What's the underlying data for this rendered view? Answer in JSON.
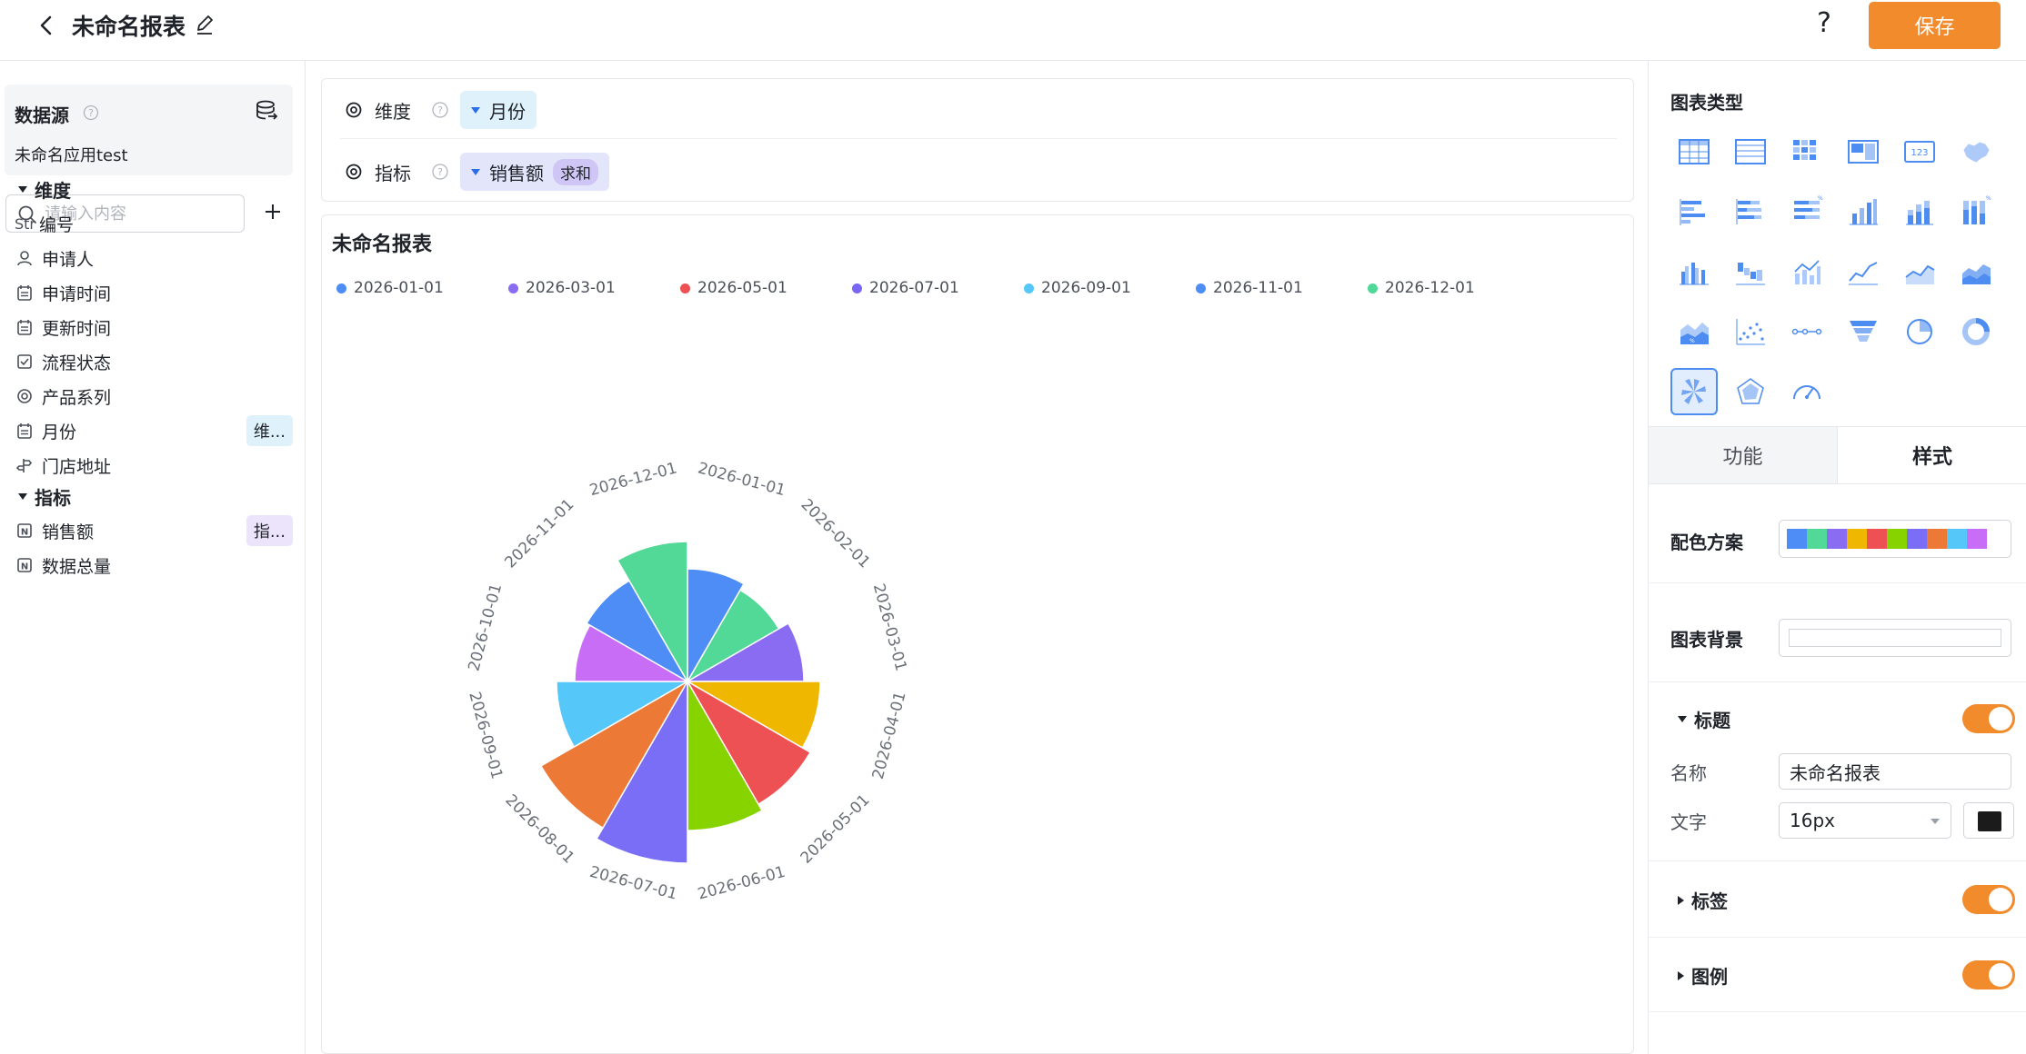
{
  "header": {
    "title": "未命名报表",
    "help": "?",
    "save_label": "保存"
  },
  "left": {
    "datasource_title": "数据源",
    "datasource_name": "未命名应用test",
    "search_placeholder": "请输入内容",
    "dim_group": "维度",
    "met_group": "指标",
    "dimensions": [
      {
        "icon": "str-icon",
        "prefix": "Str",
        "label": "编号",
        "tag": ""
      },
      {
        "icon": "user-icon",
        "prefix": "",
        "label": "申请人",
        "tag": ""
      },
      {
        "icon": "calendar-icon",
        "prefix": "",
        "label": "申请时间",
        "tag": ""
      },
      {
        "icon": "calendar-icon",
        "prefix": "",
        "label": "更新时间",
        "tag": ""
      },
      {
        "icon": "checkbox-icon",
        "prefix": "",
        "label": "流程状态",
        "tag": ""
      },
      {
        "icon": "target-icon",
        "prefix": "",
        "label": "产品系列",
        "tag": ""
      },
      {
        "icon": "calendar-icon",
        "prefix": "",
        "label": "月份",
        "tag": "维..."
      },
      {
        "icon": "signpost-icon",
        "prefix": "",
        "label": "门店地址",
        "tag": ""
      }
    ],
    "metrics": [
      {
        "icon": "number-icon",
        "label": "销售额",
        "tag": "指..."
      },
      {
        "icon": "number-icon",
        "label": "数据总量",
        "tag": ""
      }
    ]
  },
  "config": {
    "dim_label": "维度",
    "dim_value": "月份",
    "met_label": "指标",
    "met_value": "销售额",
    "met_agg": "求和"
  },
  "card": {
    "title": "未命名报表"
  },
  "chart_data": {
    "type": "rose",
    "title": "未命名报表",
    "legend_position": "top",
    "legend": [
      "2026-01-01",
      "2026-03-01",
      "2026-05-01",
      "2026-07-01",
      "2026-09-01",
      "2026-11-01",
      "2026-12-01"
    ],
    "legend_colors": [
      "#4e8cf6",
      "#8a6cf3",
      "#ee5153",
      "#7a66f5",
      "#55c8f9",
      "#4e8cf6",
      "#4fd897"
    ],
    "categories": [
      "2026-01-01",
      "2026-02-01",
      "2026-03-01",
      "2026-04-01",
      "2026-05-01",
      "2026-06-01",
      "2026-07-01",
      "2026-08-01",
      "2026-09-01",
      "2026-10-01",
      "2026-11-01",
      "2026-12-01"
    ],
    "colors": [
      "#4e8cf6",
      "#52d997",
      "#8a6cf3",
      "#efb700",
      "#ee5153",
      "#86d300",
      "#7a6ef7",
      "#ed7936",
      "#55c8f9",
      "#c86df6",
      "#4e8cf6",
      "#52d997"
    ],
    "values": [
      62,
      58,
      64,
      73,
      78,
      82,
      100,
      93,
      72,
      62,
      64,
      77
    ]
  },
  "right": {
    "chart_types_title": "图表类型",
    "chart_types": [
      "table-icon",
      "detail-table-icon",
      "pivot-table-icon",
      "card-icon",
      "number-card-icon",
      "map-icon",
      "bar-horizontal-icon",
      "stacked-bar-horizontal-icon",
      "percent-bar-horizontal-icon",
      "column-icon",
      "stacked-column-icon",
      "percent-column-icon",
      "grouped-column-icon",
      "waterfall-icon",
      "column-line-icon",
      "line-icon",
      "area-line-icon",
      "area-icon",
      "percent-area-icon",
      "scatter-icon",
      "dot-line-icon",
      "funnel-icon",
      "pie-icon",
      "donut-icon",
      "rose-icon",
      "radar-icon",
      "gauge-icon"
    ],
    "active_chart": "rose-icon",
    "tab_function": "功能",
    "tab_style": "样式",
    "palette_label": "配色方案",
    "palette_colors": [
      "#4e8cf6",
      "#52d997",
      "#8a6cf3",
      "#efb700",
      "#ee5153",
      "#86d300",
      "#7a6ef7",
      "#ed7936",
      "#55c8f9",
      "#c86df6"
    ],
    "bg_label": "图表背景",
    "title_section": "标题",
    "name_label": "名称",
    "name_value": "未命名报表",
    "font_label": "文字",
    "font_size": "16px",
    "font_color": "#1b1b1b",
    "label_section": "标签",
    "legend_section": "图例",
    "accent": "#f18b2c"
  }
}
